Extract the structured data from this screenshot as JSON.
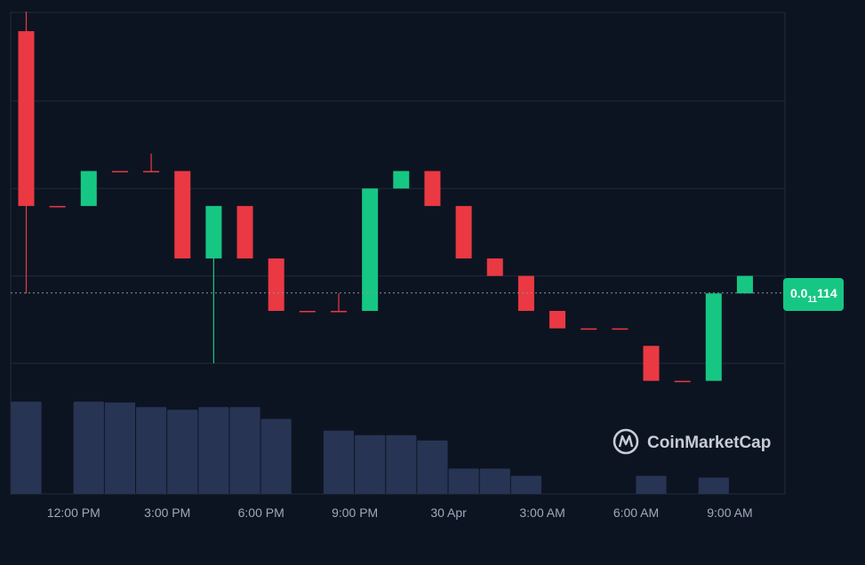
{
  "colors": {
    "background": "#0d1421",
    "grid": "#222a39",
    "up": "#16c784",
    "down": "#ea3943",
    "volume": "#283454",
    "axis_text": "#a1a7bb",
    "badge": "#16c784"
  },
  "price_badge": {
    "prefix": "0.0",
    "zeros": "11",
    "suffix": "114",
    "value": 1.14e-12
  },
  "watermark": {
    "icon": "coinmarketcap-logo-icon",
    "text": "CoinMarketCap"
  },
  "chart_data": {
    "type": "candlestick",
    "price_scale": "log-like ranks (price levels shown as rungs)",
    "x_tick_labels": [
      "12:00 PM",
      "3:00 PM",
      "6:00 PM",
      "9:00 PM",
      "30 Apr",
      "3:00 AM",
      "6:00 AM",
      "9:00 AM"
    ],
    "x_tick_slots": [
      2,
      5,
      8,
      11,
      14,
      17,
      20,
      23
    ],
    "level_min": 0,
    "level_max": 15,
    "candles": [
      {
        "slot": 0,
        "o": 15.2,
        "c": 7.2,
        "h": 16.1,
        "l": 3.2
      },
      {
        "slot": 1,
        "o": 7.2,
        "c": 7.2,
        "h": 7.2,
        "l": 7.2
      },
      {
        "slot": 2,
        "o": 7.2,
        "c": 8.8,
        "h": 8.8,
        "l": 7.2
      },
      {
        "slot": 3,
        "o": 8.8,
        "c": 8.8,
        "h": 8.8,
        "l": 8.8
      },
      {
        "slot": 4,
        "o": 8.8,
        "c": 8.8,
        "h": 9.6,
        "l": 8.8
      },
      {
        "slot": 5,
        "o": 8.8,
        "c": 4.8,
        "h": 8.8,
        "l": 4.8
      },
      {
        "slot": 6,
        "o": 4.8,
        "c": 7.2,
        "h": 7.2,
        "l": 0.0
      },
      {
        "slot": 7,
        "o": 7.2,
        "c": 4.8,
        "h": 7.2,
        "l": 4.8
      },
      {
        "slot": 8,
        "o": 4.8,
        "c": 2.4,
        "h": 4.8,
        "l": 2.4
      },
      {
        "slot": 9,
        "o": 2.4,
        "c": 2.4,
        "h": 2.4,
        "l": 2.4
      },
      {
        "slot": 10,
        "o": 2.4,
        "c": 2.4,
        "h": 3.2,
        "l": 2.4
      },
      {
        "slot": 11,
        "o": 2.4,
        "c": 8.0,
        "h": 8.0,
        "l": 2.4
      },
      {
        "slot": 12,
        "o": 8.0,
        "c": 8.8,
        "h": 8.8,
        "l": 8.0
      },
      {
        "slot": 13,
        "o": 8.8,
        "c": 7.2,
        "h": 8.8,
        "l": 7.2
      },
      {
        "slot": 14,
        "o": 7.2,
        "c": 4.8,
        "h": 7.2,
        "l": 4.8
      },
      {
        "slot": 15,
        "o": 4.8,
        "c": 4.0,
        "h": 4.8,
        "l": 4.0
      },
      {
        "slot": 16,
        "o": 4.0,
        "c": 2.4,
        "h": 4.0,
        "l": 2.4
      },
      {
        "slot": 17,
        "o": 2.4,
        "c": 1.6,
        "h": 2.4,
        "l": 1.6
      },
      {
        "slot": 18,
        "o": 1.6,
        "c": 1.6,
        "h": 1.6,
        "l": 1.6
      },
      {
        "slot": 19,
        "o": 1.6,
        "c": 1.6,
        "h": 1.6,
        "l": 1.6
      },
      {
        "slot": 20,
        "o": 0.8,
        "c": -0.8,
        "h": 0.8,
        "l": -0.8
      },
      {
        "slot": 21,
        "o": -0.8,
        "c": -0.8,
        "h": -0.8,
        "l": -0.8
      },
      {
        "slot": 22,
        "o": -0.8,
        "c": 3.2,
        "h": 3.2,
        "l": -0.8
      },
      {
        "slot": 23,
        "o": 3.2,
        "c": 4.0,
        "h": 4.0,
        "l": 3.2
      }
    ],
    "volume": [
      10.2,
      0,
      10.2,
      10.1,
      9.6,
      9.3,
      9.6,
      9.6,
      8.3,
      0,
      7.0,
      6.5,
      6.5,
      5.9,
      2.8,
      2.8,
      2.0,
      0,
      0,
      0,
      2.0,
      0,
      1.8,
      0
    ],
    "volume_max": 11
  }
}
